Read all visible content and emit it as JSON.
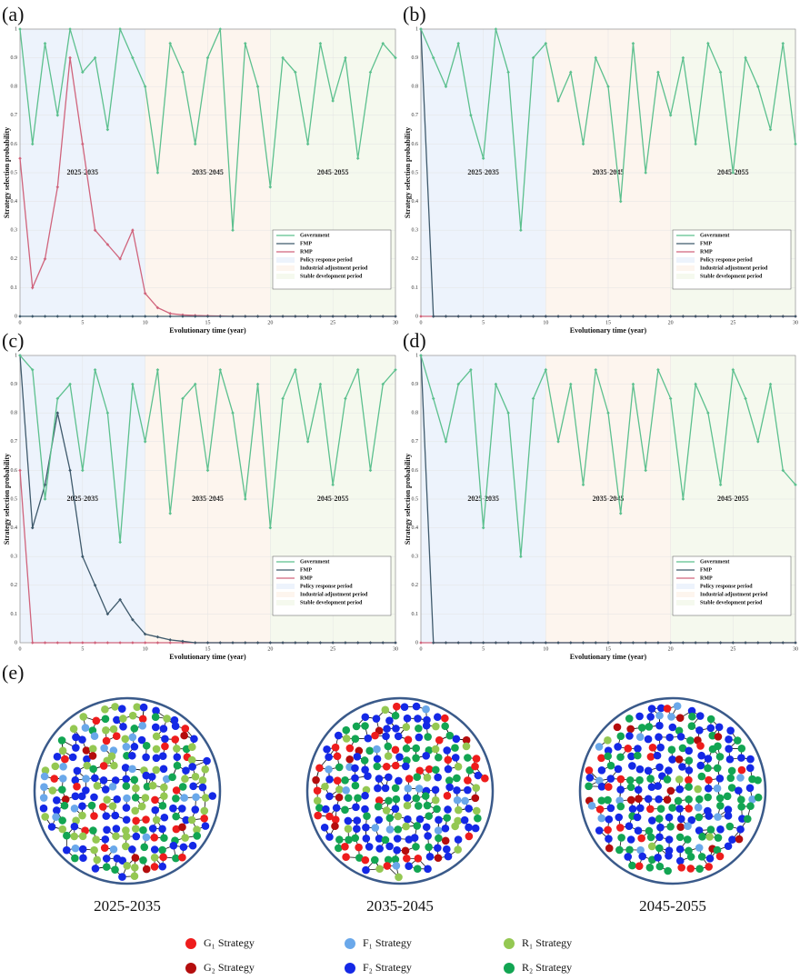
{
  "chart_data": [
    {
      "type": "line",
      "panel_label": "(a)",
      "x_label": "Evolutionary time (year)",
      "y_label": "Strategy selection probability",
      "xlim": [
        0,
        30
      ],
      "ylim": [
        0,
        1
      ],
      "xticks": [
        0,
        5,
        10,
        15,
        20,
        25,
        30
      ],
      "yticks": [
        0,
        0.1,
        0.2,
        0.3,
        0.4,
        0.5,
        0.6,
        0.7,
        0.8,
        0.9,
        1
      ],
      "grid": true,
      "legend": "lower right",
      "periods": [
        {
          "label": "2025-2035",
          "legend": "Policy response period",
          "start": 0,
          "end": 10,
          "color": "#edf3fc"
        },
        {
          "label": "2035-2045",
          "legend": "Industrial adjustment period",
          "start": 10,
          "end": 20,
          "color": "#fdf5ee"
        },
        {
          "label": "2045-2055",
          "legend": "Stable development period",
          "start": 20,
          "end": 30,
          "color": "#f5f9ee"
        }
      ],
      "x": [
        0,
        1,
        2,
        3,
        4,
        5,
        6,
        7,
        8,
        9,
        10,
        11,
        12,
        13,
        14,
        15,
        16,
        17,
        18,
        19,
        20,
        21,
        22,
        23,
        24,
        25,
        26,
        27,
        28,
        29,
        30
      ],
      "series": [
        {
          "name": "Government",
          "color": "#5cc08e",
          "values": [
            1,
            0.6,
            0.95,
            0.7,
            1,
            0.85,
            0.9,
            0.65,
            1,
            0.9,
            0.8,
            0.5,
            0.95,
            0.85,
            0.6,
            0.9,
            1,
            0.3,
            0.95,
            0.8,
            0.45,
            0.9,
            0.85,
            0.6,
            0.95,
            0.75,
            0.9,
            0.55,
            0.85,
            0.95,
            0.9
          ]
        },
        {
          "name": "FMP",
          "color": "#3f5a6c",
          "values": [
            0,
            0,
            0,
            0,
            0,
            0,
            0,
            0,
            0,
            0,
            0,
            0,
            0,
            0,
            0,
            0,
            0,
            0,
            0,
            0,
            0,
            0,
            0,
            0,
            0,
            0,
            0,
            0,
            0,
            0,
            0
          ]
        },
        {
          "name": "RMP",
          "color": "#d0647c",
          "values": [
            0.55,
            0.1,
            0.2,
            0.45,
            0.9,
            0.6,
            0.3,
            0.25,
            0.2,
            0.3,
            0.08,
            0.03,
            0.01,
            0.005,
            0.003,
            0.002,
            0.001,
            0,
            0,
            0,
            0,
            0,
            0,
            0,
            0,
            0,
            0,
            0,
            0,
            0,
            0
          ]
        }
      ]
    },
    {
      "type": "line",
      "panel_label": "(b)",
      "x_label": "Evolutionary time (year)",
      "y_label": "Strategy selection probability",
      "xlim": [
        0,
        30
      ],
      "ylim": [
        0,
        1
      ],
      "xticks": [
        0,
        5,
        10,
        15,
        20,
        25,
        30
      ],
      "yticks": [
        0,
        0.1,
        0.2,
        0.3,
        0.4,
        0.5,
        0.6,
        0.7,
        0.8,
        0.9,
        1
      ],
      "grid": true,
      "legend": "lower right",
      "periods": [
        {
          "label": "2025-2035",
          "legend": "Policy response period",
          "start": 0,
          "end": 10,
          "color": "#edf3fc"
        },
        {
          "label": "2035-2045",
          "legend": "Industrial adjustment period",
          "start": 10,
          "end": 20,
          "color": "#fdf5ee"
        },
        {
          "label": "2045-2055",
          "legend": "Stable development period",
          "start": 20,
          "end": 30,
          "color": "#f5f9ee"
        }
      ],
      "x": [
        0,
        1,
        2,
        3,
        4,
        5,
        6,
        7,
        8,
        9,
        10,
        11,
        12,
        13,
        14,
        15,
        16,
        17,
        18,
        19,
        20,
        21,
        22,
        23,
        24,
        25,
        26,
        27,
        28,
        29,
        30
      ],
      "series": [
        {
          "name": "Government",
          "color": "#5cc08e",
          "values": [
            1,
            0.9,
            0.8,
            0.95,
            0.7,
            0.55,
            1,
            0.85,
            0.3,
            0.9,
            0.95,
            0.75,
            0.85,
            0.6,
            0.9,
            0.8,
            0.4,
            0.95,
            0.5,
            0.85,
            0.7,
            0.9,
            0.6,
            0.95,
            0.85,
            0.5,
            0.9,
            0.8,
            0.65,
            0.95,
            0.6
          ]
        },
        {
          "name": "FMP",
          "color": "#3f5a6c",
          "values": [
            1,
            0,
            0,
            0,
            0,
            0,
            0,
            0,
            0,
            0,
            0,
            0,
            0,
            0,
            0,
            0,
            0,
            0,
            0,
            0,
            0,
            0,
            0,
            0,
            0,
            0,
            0,
            0,
            0,
            0,
            0
          ]
        },
        {
          "name": "RMP",
          "color": "#d0647c",
          "values": [
            0,
            0,
            0,
            0,
            0,
            0,
            0,
            0,
            0,
            0,
            0,
            0,
            0,
            0,
            0,
            0,
            0,
            0,
            0,
            0,
            0,
            0,
            0,
            0,
            0,
            0,
            0,
            0,
            0,
            0,
            0
          ]
        }
      ]
    },
    {
      "type": "line",
      "panel_label": "(c)",
      "x_label": "Evolutionary time (year)",
      "y_label": "Strategy selection probability",
      "xlim": [
        0,
        30
      ],
      "ylim": [
        0,
        1
      ],
      "xticks": [
        0,
        5,
        10,
        15,
        20,
        25,
        30
      ],
      "yticks": [
        0,
        0.1,
        0.2,
        0.3,
        0.4,
        0.5,
        0.6,
        0.7,
        0.8,
        0.9,
        1
      ],
      "grid": true,
      "legend": "lower right",
      "periods": [
        {
          "label": "2025-2035",
          "legend": "Policy response period",
          "start": 0,
          "end": 10,
          "color": "#edf3fc"
        },
        {
          "label": "2035-2045",
          "legend": "Industrial adjustment period",
          "start": 10,
          "end": 20,
          "color": "#fdf5ee"
        },
        {
          "label": "2045-2055",
          "legend": "Stable development period",
          "start": 20,
          "end": 30,
          "color": "#f5f9ee"
        }
      ],
      "x": [
        0,
        1,
        2,
        3,
        4,
        5,
        6,
        7,
        8,
        9,
        10,
        11,
        12,
        13,
        14,
        15,
        16,
        17,
        18,
        19,
        20,
        21,
        22,
        23,
        24,
        25,
        26,
        27,
        28,
        29,
        30
      ],
      "series": [
        {
          "name": "Government",
          "color": "#5cc08e",
          "values": [
            1,
            0.95,
            0.5,
            0.85,
            0.9,
            0.6,
            0.95,
            0.8,
            0.35,
            0.9,
            0.7,
            0.95,
            0.45,
            0.85,
            0.9,
            0.6,
            0.95,
            0.8,
            0.5,
            0.9,
            0.4,
            0.85,
            0.95,
            0.7,
            0.9,
            0.55,
            0.85,
            0.95,
            0.6,
            0.9,
            0.95
          ]
        },
        {
          "name": "FMP",
          "color": "#3f5a6c",
          "values": [
            1,
            0.4,
            0.55,
            0.8,
            0.6,
            0.3,
            0.2,
            0.1,
            0.15,
            0.08,
            0.03,
            0.02,
            0.01,
            0.005,
            0,
            0,
            0,
            0,
            0,
            0,
            0,
            0,
            0,
            0,
            0,
            0,
            0,
            0,
            0,
            0,
            0
          ]
        },
        {
          "name": "RMP",
          "color": "#d0647c",
          "values": [
            0.6,
            0,
            0,
            0,
            0,
            0,
            0,
            0,
            0,
            0,
            0,
            0,
            0,
            0,
            0,
            0,
            0,
            0,
            0,
            0,
            0,
            0,
            0,
            0,
            0,
            0,
            0,
            0,
            0,
            0,
            0
          ]
        }
      ]
    },
    {
      "type": "line",
      "panel_label": "(d)",
      "x_label": "Evolutionary time (year)",
      "y_label": "Strategy selection probability",
      "xlim": [
        0,
        30
      ],
      "ylim": [
        0,
        1
      ],
      "xticks": [
        0,
        5,
        10,
        15,
        20,
        25,
        30
      ],
      "yticks": [
        0,
        0.1,
        0.2,
        0.3,
        0.4,
        0.5,
        0.6,
        0.7,
        0.8,
        0.9,
        1
      ],
      "grid": true,
      "legend": "lower right",
      "periods": [
        {
          "label": "2025-2035",
          "legend": "Policy response period",
          "start": 0,
          "end": 10,
          "color": "#edf3fc"
        },
        {
          "label": "2035-2045",
          "legend": "Industrial adjustment period",
          "start": 10,
          "end": 20,
          "color": "#fdf5ee"
        },
        {
          "label": "2045-2055",
          "legend": "Stable development period",
          "start": 20,
          "end": 30,
          "color": "#f5f9ee"
        }
      ],
      "x": [
        0,
        1,
        2,
        3,
        4,
        5,
        6,
        7,
        8,
        9,
        10,
        11,
        12,
        13,
        14,
        15,
        16,
        17,
        18,
        19,
        20,
        21,
        22,
        23,
        24,
        25,
        26,
        27,
        28,
        29,
        30
      ],
      "series": [
        {
          "name": "Government",
          "color": "#5cc08e",
          "values": [
            1,
            0.85,
            0.7,
            0.9,
            0.95,
            0.4,
            0.9,
            0.8,
            0.3,
            0.85,
            0.95,
            0.7,
            0.9,
            0.55,
            0.95,
            0.8,
            0.45,
            0.9,
            0.6,
            0.95,
            0.85,
            0.5,
            0.9,
            0.8,
            0.55,
            0.95,
            0.85,
            0.7,
            0.9,
            0.6,
            0.55
          ]
        },
        {
          "name": "FMP",
          "color": "#3f5a6c",
          "values": [
            1,
            0,
            0,
            0,
            0,
            0,
            0,
            0,
            0,
            0,
            0,
            0,
            0,
            0,
            0,
            0,
            0,
            0,
            0,
            0,
            0,
            0,
            0,
            0,
            0,
            0,
            0,
            0,
            0,
            0,
            0
          ]
        },
        {
          "name": "RMP",
          "color": "#d0647c",
          "values": [
            0,
            0,
            0,
            0,
            0,
            0,
            0,
            0,
            0,
            0,
            0,
            0,
            0,
            0,
            0,
            0,
            0,
            0,
            0,
            0,
            0,
            0,
            0,
            0,
            0,
            0,
            0,
            0,
            0,
            0,
            0
          ]
        }
      ]
    }
  ],
  "network_panel": {
    "panel_label": "(e)",
    "captions": [
      "2025-2035",
      "2035-2045",
      "2045-2055"
    ],
    "legend": [
      {
        "label": "G₁ Strategy",
        "color": "#ee1c1c"
      },
      {
        "label": "F₁ Strategy",
        "color": "#6aa8ea"
      },
      {
        "label": "R₁ Strategy",
        "color": "#94c852"
      },
      {
        "label": "G₂ Strategy",
        "color": "#b40d0d"
      },
      {
        "label": "F₂ Strategy",
        "color": "#1428e6"
      },
      {
        "label": "R₂ Strategy",
        "color": "#12a552"
      }
    ]
  }
}
